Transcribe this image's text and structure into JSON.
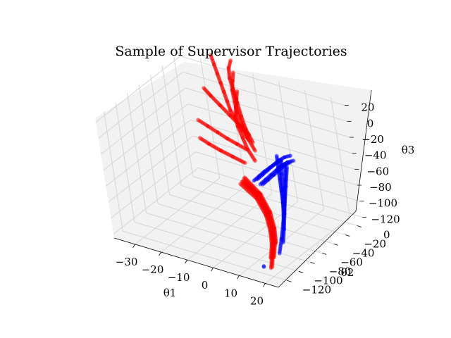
{
  "chart_data": {
    "type": "scatter",
    "projection": "3d",
    "title": "Sample of Supervisor Trajectories",
    "xlabel": "θ1",
    "ylabel": "θ2",
    "zlabel": "θ3",
    "xlim": [
      -38,
      25
    ],
    "ylim": [
      -135,
      10
    ],
    "zlim": [
      -125,
      25
    ],
    "xticks": [
      -30,
      -20,
      -10,
      0,
      10,
      20
    ],
    "yticks": [
      -120,
      -100,
      -80,
      -60,
      -40,
      -20,
      0
    ],
    "zticks": [
      -120,
      -100,
      -80,
      -60,
      -40,
      -20,
      0,
      20
    ],
    "grid": true,
    "pane_color": "#f2f2f2",
    "series": [
      {
        "color": "#ff0000",
        "strands": [
          {
            "points": [
              [
                -10,
                -12,
                -45
              ],
              [
                -12,
                -12,
                -35
              ],
              [
                -14,
                -11,
                -25
              ],
              [
                -16,
                -10,
                -15
              ],
              [
                -17,
                -9,
                -5
              ],
              [
                -18,
                -8,
                5
              ],
              [
                -19,
                -7,
                15
              ],
              [
                -20,
                -6,
                25
              ],
              [
                -21,
                -5,
                35
              ],
              [
                -22,
                -4,
                45
              ]
            ]
          },
          {
            "points": [
              [
                -8,
                -14,
                -45
              ],
              [
                -10,
                -14,
                -30
              ],
              [
                -11,
                -14,
                -15
              ],
              [
                -12,
                -13,
                0
              ],
              [
                -13,
                -12,
                15
              ],
              [
                -14,
                -11,
                28
              ],
              [
                -14,
                -10,
                40
              ],
              [
                -13,
                -9,
                50
              ]
            ]
          },
          {
            "points": [
              [
                -6,
                -20,
                -50
              ],
              [
                -8,
                -21,
                -35
              ],
              [
                -9,
                -22,
                -20
              ],
              [
                -10,
                -23,
                -5
              ],
              [
                -10,
                -24,
                10
              ],
              [
                -10,
                -25,
                25
              ],
              [
                -9,
                -26,
                38
              ],
              [
                -8,
                -27,
                50
              ]
            ]
          },
          {
            "points": [
              [
                -4,
                -30,
                -55
              ],
              [
                -6,
                -31,
                -42
              ],
              [
                -7,
                -32,
                -28
              ],
              [
                -8,
                -33,
                -14
              ],
              [
                -8,
                -34,
                0
              ],
              [
                -7,
                -35,
                12
              ],
              [
                -6,
                -36,
                24
              ],
              [
                -5,
                -37,
                35
              ]
            ]
          },
          {
            "points": [
              [
                -12,
                -10,
                -60
              ],
              [
                -15,
                -12,
                -55
              ],
              [
                -18,
                -14,
                -50
              ],
              [
                -21,
                -16,
                -44
              ],
              [
                -24,
                -18,
                -38
              ],
              [
                -27,
                -20,
                -32
              ]
            ]
          },
          {
            "points": [
              [
                -14,
                -8,
                -80
              ],
              [
                -18,
                -10,
                -75
              ],
              [
                -22,
                -12,
                -70
              ],
              [
                -26,
                -13,
                -65
              ],
              [
                -29,
                -14,
                -60
              ]
            ]
          },
          {
            "points": [
              [
                -10,
                -10,
                -40
              ],
              [
                -13,
                -11,
                -30
              ],
              [
                -16,
                -12,
                -20
              ],
              [
                -19,
                -13,
                -10
              ],
              [
                -22,
                -14,
                0
              ],
              [
                -24,
                -15,
                8
              ]
            ]
          },
          {
            "points": [
              [
                -16,
                -4,
                -110
              ],
              [
                -15,
                -2,
                -115
              ],
              [
                -14,
                0,
                -120
              ],
              [
                -13,
                2,
                -122
              ]
            ]
          },
          {
            "points": [
              [
                -17,
                -6,
                -108
              ],
              [
                -8,
                -20,
                -110
              ],
              [
                0,
                -40,
                -112
              ],
              [
                6,
                -60,
                -114
              ],
              [
                11,
                -80,
                -116
              ],
              [
                15,
                -100,
                -118
              ],
              [
                18,
                -115,
                -119
              ]
            ]
          },
          {
            "points": [
              [
                -16,
                -8,
                -105
              ],
              [
                -7,
                -22,
                -107
              ],
              [
                1,
                -42,
                -109
              ],
              [
                7,
                -62,
                -111
              ],
              [
                12,
                -82,
                -113
              ],
              [
                16,
                -102,
                -115
              ],
              [
                19,
                -117,
                -116
              ]
            ]
          },
          {
            "points": [
              [
                -15,
                -10,
                -100
              ],
              [
                -6,
                -24,
                -103
              ],
              [
                2,
                -44,
                -106
              ],
              [
                8,
                -64,
                -109
              ],
              [
                13,
                -84,
                -111
              ],
              [
                17,
                -104,
                -113
              ]
            ]
          },
          {
            "points": [
              [
                -14,
                -12,
                -96
              ],
              [
                -5,
                -26,
                -100
              ],
              [
                3,
                -46,
                -103
              ],
              [
                9,
                -66,
                -106
              ],
              [
                14,
                -86,
                -108
              ]
            ]
          },
          {
            "points": [
              [
                -18,
                -5,
                -112
              ],
              [
                -9,
                -18,
                -114
              ],
              [
                -1,
                -38,
                -116
              ],
              [
                5,
                -58,
                -118
              ],
              [
                10,
                -78,
                -119
              ],
              [
                14,
                -98,
                -120
              ]
            ]
          }
        ]
      },
      {
        "color": "#0000ff",
        "strands": [
          {
            "points": [
              [
                -8,
                -16,
                -90
              ],
              [
                -5,
                -18,
                -80
              ],
              [
                -2,
                -20,
                -70
              ],
              [
                1,
                -22,
                -60
              ],
              [
                4,
                -24,
                -50
              ],
              [
                7,
                -26,
                -42
              ],
              [
                10,
                -28,
                -36
              ]
            ]
          },
          {
            "points": [
              [
                -6,
                -20,
                -92
              ],
              [
                -3,
                -22,
                -82
              ],
              [
                0,
                -24,
                -72
              ],
              [
                3,
                -26,
                -62
              ],
              [
                6,
                -28,
                -52
              ],
              [
                9,
                -30,
                -44
              ],
              [
                12,
                -32,
                -38
              ]
            ]
          },
          {
            "points": [
              [
                -10,
                -14,
                -95
              ],
              [
                -7,
                -16,
                -85
              ],
              [
                -4,
                -18,
                -75
              ],
              [
                -1,
                -20,
                -66
              ],
              [
                2,
                -22,
                -57
              ],
              [
                5,
                -24,
                -49
              ]
            ]
          },
          {
            "points": [
              [
                -4,
                -24,
                -88
              ],
              [
                -1,
                -26,
                -78
              ],
              [
                2,
                -28,
                -68
              ],
              [
                5,
                -30,
                -58
              ],
              [
                8,
                -32,
                -48
              ],
              [
                11,
                -34,
                -40
              ]
            ]
          },
          {
            "points": [
              [
                5,
                -30,
                -40
              ],
              [
                7,
                -38,
                -48
              ],
              [
                9,
                -46,
                -56
              ],
              [
                11,
                -54,
                -64
              ],
              [
                13,
                -62,
                -72
              ],
              [
                15,
                -70,
                -80
              ]
            ]
          },
          {
            "points": [
              [
                7,
                -32,
                -42
              ],
              [
                9,
                -42,
                -52
              ],
              [
                11,
                -52,
                -62
              ],
              [
                13,
                -62,
                -72
              ],
              [
                15,
                -72,
                -82
              ],
              [
                17,
                -82,
                -90
              ]
            ]
          },
          {
            "points": [
              [
                9,
                -34,
                -44
              ],
              [
                11,
                -46,
                -56
              ],
              [
                13,
                -58,
                -68
              ],
              [
                15,
                -70,
                -80
              ],
              [
                17,
                -82,
                -90
              ],
              [
                19,
                -94,
                -98
              ]
            ]
          },
          {
            "points": [
              [
                10,
                -36,
                -46
              ],
              [
                12,
                -50,
                -60
              ],
              [
                14,
                -64,
                -74
              ],
              [
                16,
                -78,
                -86
              ],
              [
                18,
                -92,
                -96
              ],
              [
                20,
                -106,
                -104
              ]
            ]
          },
          {
            "points": [
              [
                16,
                -118,
                -118
              ],
              [
                16,
                -118,
                -117
              ]
            ]
          }
        ]
      }
    ]
  }
}
